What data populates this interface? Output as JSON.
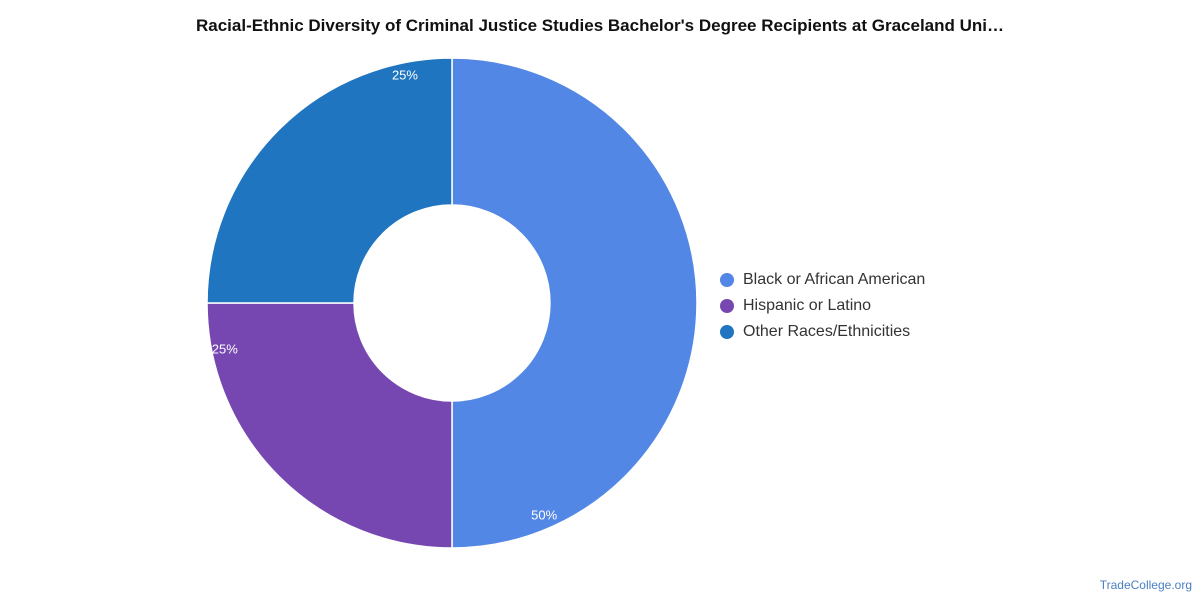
{
  "chart_data": {
    "type": "pie",
    "variant": "donut",
    "title": "Racial-Ethnic Diversity of Criminal Justice Studies Bachelor's Degree Recipients at Graceland Uni…",
    "categories": [
      "Black or African American",
      "Hispanic or Latino",
      "Other Races/Ethnicities"
    ],
    "values": [
      50,
      25,
      25
    ],
    "data_labels": [
      "50%",
      "25%",
      "25%"
    ],
    "colors": [
      "#5387e5",
      "#7647b1",
      "#1f75bf"
    ],
    "legend_position": "right"
  },
  "credit": "TradeCollege.org"
}
